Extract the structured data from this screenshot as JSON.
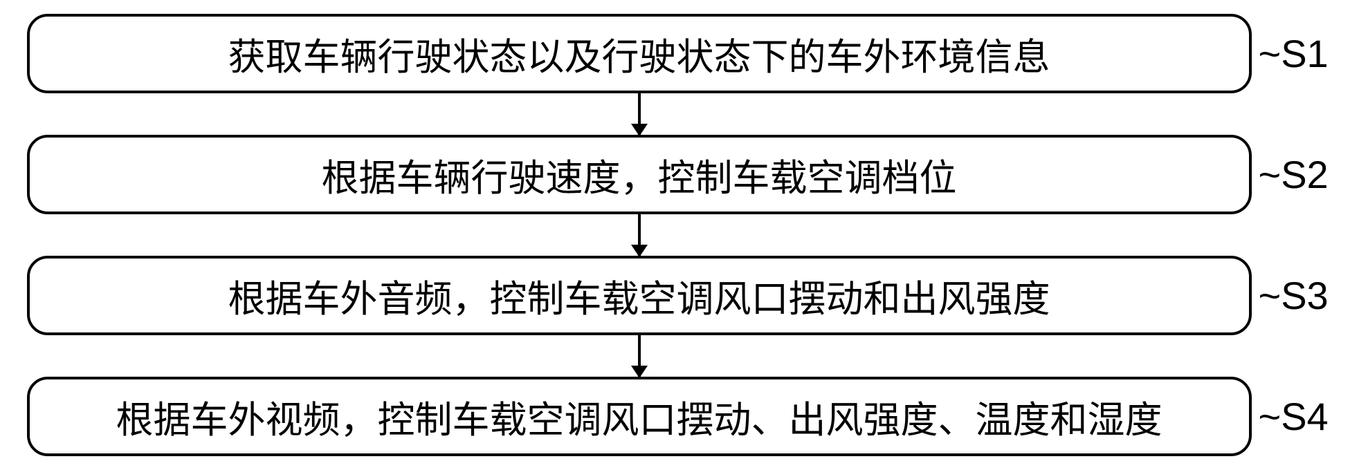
{
  "flowchart": {
    "type": "flowchart",
    "direction": "vertical",
    "background_color": "#ffffff",
    "box_border_color": "#000000",
    "box_border_width": 4,
    "box_border_radius": 30,
    "box_background": "#ffffff",
    "text_color": "#000000",
    "font_size": 54,
    "label_font_size": 56,
    "arrow_color": "#000000",
    "arrow_width": 4,
    "arrow_height": 60,
    "steps": [
      {
        "text": "获取车辆行驶状态以及行驶状态下的车外环境信息",
        "label": "~S1"
      },
      {
        "text": "根据车辆行驶速度，控制车载空调档位",
        "label": "~S2"
      },
      {
        "text": "根据车外音频，控制车载空调风口摆动和出风强度",
        "label": "~S3"
      },
      {
        "text": "根据车外视频，控制车载空调风口摆动、出风强度、温度和湿度",
        "label": "~S4"
      }
    ]
  }
}
